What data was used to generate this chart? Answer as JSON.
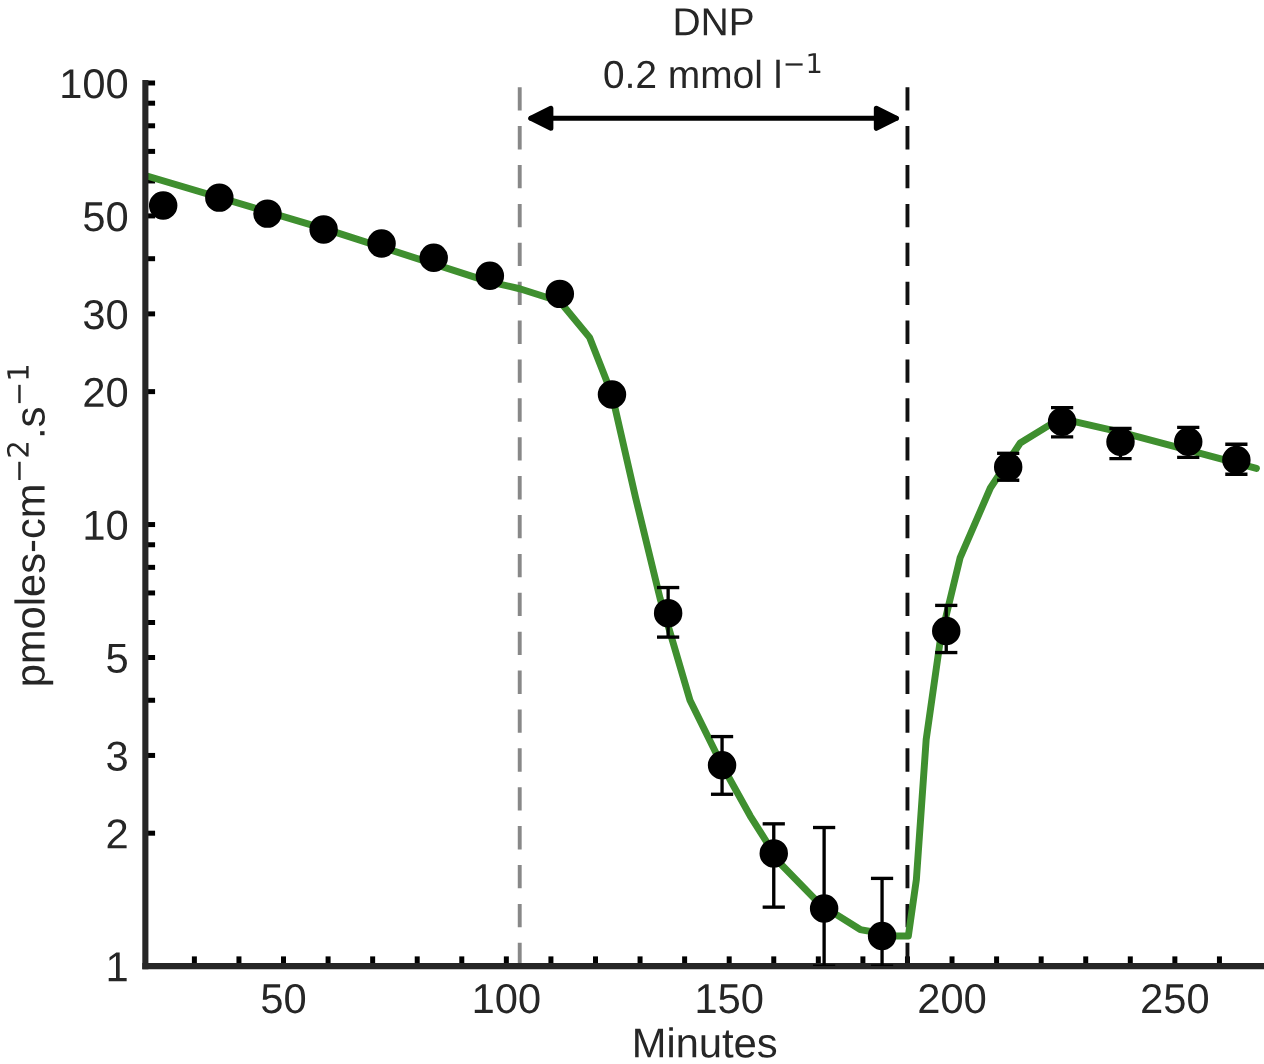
{
  "chart_data": {
    "type": "scatter",
    "xlabel": "Minutes",
    "ylabel": "pmoles-cm$^{−2}$.s$^{−1}$",
    "log": "y",
    "grid": false,
    "legend": false,
    "xlim": [
      19,
      270
    ],
    "ylim": [
      1,
      100
    ],
    "xticks": [
      {
        "value": 30,
        "label": null
      },
      {
        "value": 40,
        "label": null
      },
      50,
      {
        "value": 60,
        "label": null
      },
      {
        "value": 70,
        "label": null
      },
      {
        "value": 80,
        "label": null
      },
      {
        "value": 90,
        "label": null
      },
      100,
      {
        "value": 110,
        "label": null
      },
      {
        "value": 120,
        "label": null
      },
      {
        "value": 130,
        "label": null
      },
      {
        "value": 140,
        "label": null
      },
      150,
      {
        "value": 160,
        "label": null
      },
      {
        "value": 170,
        "label": null
      },
      {
        "value": 180,
        "label": null
      },
      {
        "value": 190,
        "label": null
      },
      200,
      {
        "value": 210,
        "label": null
      },
      {
        "value": 220,
        "label": null
      },
      {
        "value": 230,
        "label": null
      },
      {
        "value": 240,
        "label": null
      },
      250,
      {
        "value": 260,
        "label": null
      }
    ],
    "yticks": [
      1,
      2,
      3,
      {
        "value": 4,
        "label": null
      },
      5,
      {
        "value": 6,
        "label": null
      },
      {
        "value": 7,
        "label": null
      },
      {
        "value": 8,
        "label": null
      },
      {
        "value": 9,
        "label": null
      },
      10,
      20,
      30,
      {
        "value": 40,
        "label": null
      },
      50,
      {
        "value": 60,
        "label": null
      },
      {
        "value": 70,
        "label": null
      },
      {
        "value": 80,
        "label": null
      },
      {
        "value": 90,
        "label": null
      },
      100
    ],
    "ref_lines": [
      {
        "axis": "x",
        "value": 103,
        "color": "#888888",
        "line_style": "dashed"
      },
      {
        "axis": "x",
        "value": 190,
        "color": "#111111",
        "line_style": "dashed"
      }
    ],
    "annotations": [
      "DNP",
      "0.2 mmol l$^{−1}$"
    ],
    "series": [
      {
        "type": "line",
        "color": "#3f8f2f",
        "marker": "none",
        "line_style": "solid",
        "x": [
          19,
          60,
          96,
          103,
          112,
          118.7,
          123.7,
          129,
          134.5,
          141.2,
          148.4,
          154.7,
          161.4,
          170.4,
          179.4,
          187.5,
          190.2,
          192,
          194.2,
          197.4,
          201.8,
          208.6,
          215.3,
          224.3,
          237.8,
          251.3,
          268.3
        ],
        "values": [
          61.7,
          46.5,
          35.5,
          34.2,
          32,
          26.5,
          19.7,
          11.5,
          6.8,
          4.0,
          2.85,
          2.19,
          1.71,
          1.38,
          1.21,
          1.17,
          1.17,
          1.57,
          3.26,
          5.5,
          8.4,
          12.1,
          15.3,
          17.4,
          16.2,
          14.9,
          13.4
        ]
      },
      {
        "color": "#000000",
        "marker": "circle",
        "x": [
          23,
          35.6,
          46.4,
          59,
          72,
          83.7,
          96.3,
          112,
          123.7,
          136.3,
          148.4,
          160,
          171.3,
          184.3,
          198.7,
          212.6,
          224.7,
          237.8,
          253,
          263.8
        ],
        "values": [
          52.8,
          55,
          50.6,
          46.6,
          43.3,
          40.2,
          36.6,
          33.3,
          19.7,
          6.3,
          2.85,
          1.8,
          1.35,
          1.17,
          5.74,
          13.5,
          17.1,
          15.4,
          15.4,
          14.0
        ],
        "errors": [
          null,
          null,
          null,
          null,
          null,
          null,
          null,
          null,
          null,
          [
            5.56,
            7.2
          ],
          [
            2.45,
            3.31
          ],
          [
            1.36,
            2.1
          ],
          [
            1.0,
            2.06
          ],
          [
            1.0,
            1.58
          ],
          [
            5.13,
            6.56
          ],
          [
            12.6,
            14.5
          ],
          [
            15.8,
            18.4
          ],
          [
            14.1,
            16.5
          ],
          [
            14.2,
            16.6
          ],
          [
            13.0,
            15.2
          ]
        ]
      }
    ]
  }
}
